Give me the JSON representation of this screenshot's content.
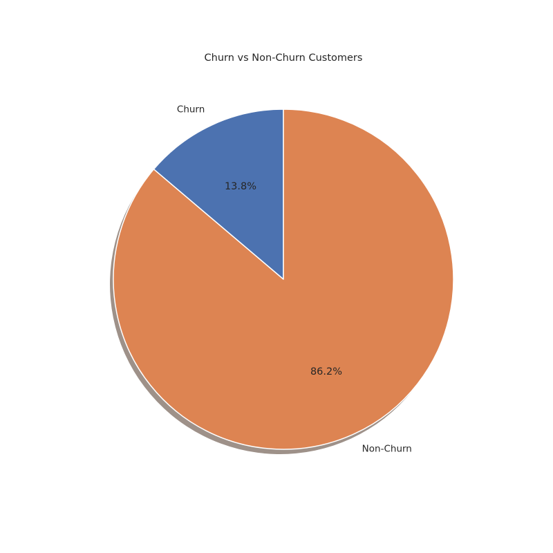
{
  "chart_data": {
    "type": "pie",
    "title": "Churn vs Non-Churn Customers",
    "labels": [
      "Churn",
      "Non-Churn"
    ],
    "values": [
      13.8,
      86.2
    ],
    "percent_labels": [
      "13.8%",
      "86.2%"
    ],
    "colors": [
      "#4c72b0",
      "#dd8452"
    ],
    "shadow_color": "#9e9189",
    "edge_color": "#ffffff",
    "start_angle_deg": 90,
    "direction": "counterclockwise",
    "shadow": true
  }
}
